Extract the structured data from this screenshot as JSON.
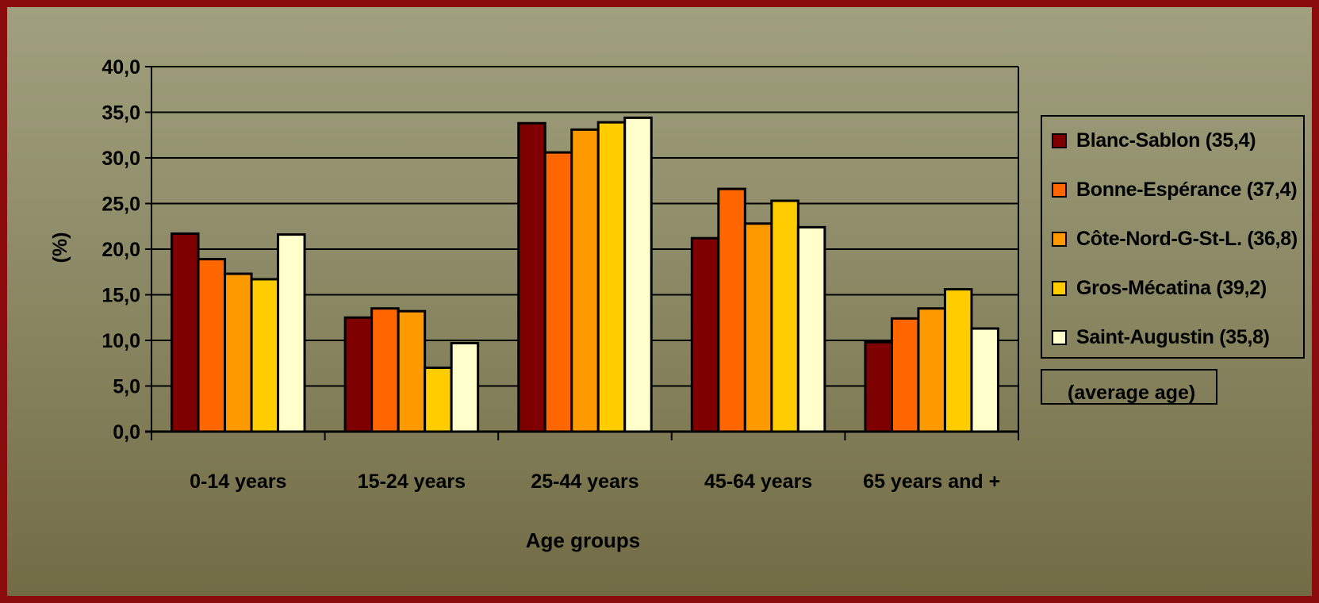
{
  "chart_data": {
    "type": "bar",
    "xlabel": "Age groups",
    "ylabel": "(%)",
    "ylim": [
      0,
      40
    ],
    "ytick_step": 5,
    "ytick_labels": [
      "0,0",
      "5,0",
      "10,0",
      "15,0",
      "20,0",
      "25,0",
      "30,0",
      "35,0",
      "40,0"
    ],
    "grid": true,
    "legend_position": "right",
    "categories": [
      "0-14 years",
      "15-24 years",
      "25-44 years",
      "45-64 years",
      "65 years and +"
    ],
    "series": [
      {
        "name": "Blanc-Sablon (35,4)",
        "color": "#7f0000",
        "values": [
          21.7,
          12.5,
          33.8,
          21.2,
          9.8
        ]
      },
      {
        "name": "Bonne-Espérance (37,4)",
        "color": "#ff6600",
        "values": [
          18.9,
          13.5,
          30.6,
          26.6,
          12.4
        ]
      },
      {
        "name": "Côte-Nord-G-St-L. (36,8)",
        "color": "#ff9900",
        "values": [
          17.3,
          13.2,
          33.1,
          22.8,
          13.5
        ]
      },
      {
        "name": "Gros-Mécatina (39,2)",
        "color": "#ffcc00",
        "values": [
          16.7,
          7.0,
          33.9,
          25.3,
          15.6
        ]
      },
      {
        "name": "Saint-Augustin (35,8)",
        "color": "#ffffcc",
        "values": [
          21.6,
          9.7,
          34.4,
          22.4,
          11.3
        ]
      }
    ],
    "legend_note": "(average age)"
  }
}
